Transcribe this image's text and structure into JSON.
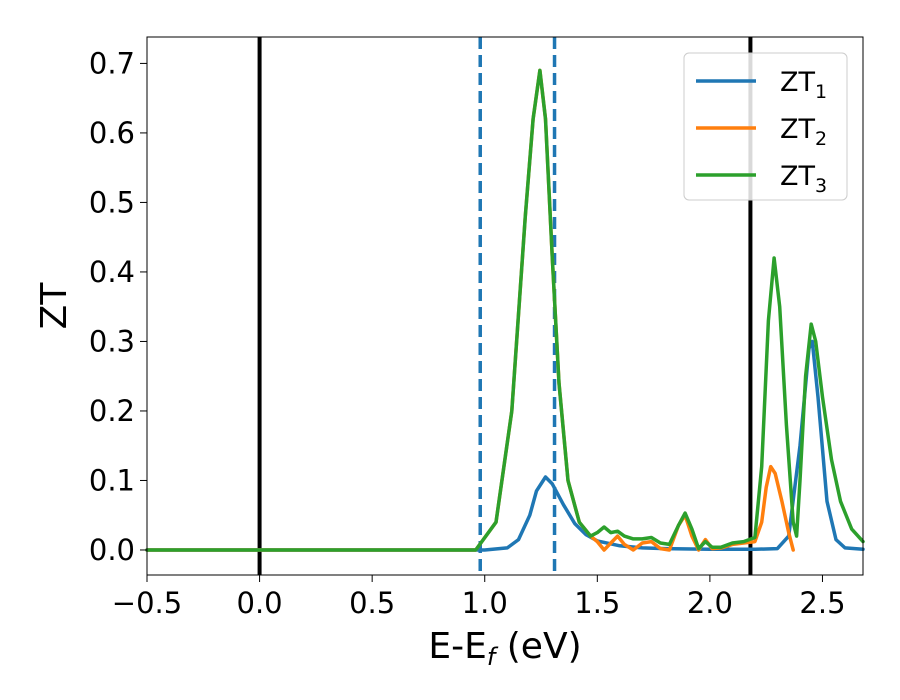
{
  "chart_data": {
    "type": "line",
    "xlabel_main": "E-E",
    "xlabel_sub": "f",
    "xlabel_tail": " (eV)",
    "ylabel": "ZT",
    "xlim": [
      -0.5,
      2.68
    ],
    "ylim": [
      -0.036,
      0.738
    ],
    "x_ticks": [
      -0.5,
      0.0,
      0.5,
      1.0,
      1.5,
      2.0,
      2.5
    ],
    "x_tick_labels": [
      "−0.5",
      "0.0",
      "0.5",
      "1.0",
      "1.5",
      "2.0",
      "2.5"
    ],
    "y_ticks": [
      0.0,
      0.1,
      0.2,
      0.3,
      0.4,
      0.5,
      0.6,
      0.7
    ],
    "y_tick_labels": [
      "0.0",
      "0.1",
      "0.2",
      "0.3",
      "0.4",
      "0.5",
      "0.6",
      "0.7"
    ],
    "grid": false,
    "legend_position": "top-right",
    "vlines": [
      {
        "x": 0.0,
        "style": "solid",
        "color": "#000000"
      },
      {
        "x": 0.98,
        "style": "dashed",
        "color": "#1f77b4"
      },
      {
        "x": 1.31,
        "style": "dashed",
        "color": "#1f77b4"
      },
      {
        "x": 2.18,
        "style": "solid",
        "color": "#000000"
      }
    ],
    "series": [
      {
        "name": "ZT",
        "subscript": "1",
        "color": "#1f77b4",
        "points": [
          [
            -0.5,
            0.0
          ],
          [
            1.0,
            0.0
          ],
          [
            1.1,
            0.003
          ],
          [
            1.15,
            0.015
          ],
          [
            1.2,
            0.05
          ],
          [
            1.23,
            0.085
          ],
          [
            1.27,
            0.105
          ],
          [
            1.3,
            0.095
          ],
          [
            1.35,
            0.065
          ],
          [
            1.4,
            0.038
          ],
          [
            1.45,
            0.022
          ],
          [
            1.5,
            0.013
          ],
          [
            1.6,
            0.006
          ],
          [
            1.7,
            0.003
          ],
          [
            1.8,
            0.002
          ],
          [
            2.0,
            0.001
          ],
          [
            2.2,
            0.001
          ],
          [
            2.3,
            0.002
          ],
          [
            2.35,
            0.02
          ],
          [
            2.4,
            0.15
          ],
          [
            2.44,
            0.29
          ],
          [
            2.455,
            0.3
          ],
          [
            2.48,
            0.22
          ],
          [
            2.52,
            0.07
          ],
          [
            2.56,
            0.015
          ],
          [
            2.6,
            0.003
          ],
          [
            2.68,
            0.001
          ]
        ]
      },
      {
        "name": "ZT",
        "subscript": "2",
        "color": "#ff7f0e",
        "points": [
          [
            -0.5,
            0.0
          ],
          [
            0.96,
            0.0
          ],
          [
            1.05,
            0.04
          ],
          [
            1.12,
            0.2
          ],
          [
            1.18,
            0.48
          ],
          [
            1.215,
            0.62
          ],
          [
            1.245,
            0.69
          ],
          [
            1.27,
            0.62
          ],
          [
            1.3,
            0.42
          ],
          [
            1.33,
            0.24
          ],
          [
            1.37,
            0.1
          ],
          [
            1.42,
            0.04
          ],
          [
            1.47,
            0.02
          ],
          [
            1.5,
            0.012
          ],
          [
            1.53,
            0.0
          ],
          [
            1.56,
            0.01
          ],
          [
            1.59,
            0.02
          ],
          [
            1.62,
            0.008
          ],
          [
            1.66,
            0.0
          ],
          [
            1.7,
            0.01
          ],
          [
            1.74,
            0.012
          ],
          [
            1.78,
            0.002
          ],
          [
            1.82,
            0.0
          ],
          [
            1.86,
            0.035
          ],
          [
            1.89,
            0.05
          ],
          [
            1.92,
            0.02
          ],
          [
            1.95,
            0.0
          ],
          [
            1.98,
            0.015
          ],
          [
            2.01,
            0.002
          ],
          [
            2.05,
            0.003
          ],
          [
            2.1,
            0.008
          ],
          [
            2.15,
            0.01
          ],
          [
            2.2,
            0.012
          ],
          [
            2.23,
            0.04
          ],
          [
            2.25,
            0.09
          ],
          [
            2.27,
            0.12
          ],
          [
            2.29,
            0.11
          ],
          [
            2.32,
            0.07
          ],
          [
            2.35,
            0.025
          ],
          [
            2.37,
            0.0
          ]
        ]
      },
      {
        "name": "ZT",
        "subscript": "3",
        "color": "#2ca02c",
        "points": [
          [
            -0.5,
            0.0
          ],
          [
            0.96,
            0.0
          ],
          [
            1.05,
            0.04
          ],
          [
            1.12,
            0.2
          ],
          [
            1.18,
            0.48
          ],
          [
            1.215,
            0.62
          ],
          [
            1.245,
            0.69
          ],
          [
            1.27,
            0.62
          ],
          [
            1.3,
            0.42
          ],
          [
            1.33,
            0.24
          ],
          [
            1.37,
            0.1
          ],
          [
            1.42,
            0.04
          ],
          [
            1.47,
            0.02
          ],
          [
            1.5,
            0.025
          ],
          [
            1.53,
            0.033
          ],
          [
            1.56,
            0.025
          ],
          [
            1.59,
            0.027
          ],
          [
            1.62,
            0.02
          ],
          [
            1.66,
            0.016
          ],
          [
            1.7,
            0.016
          ],
          [
            1.74,
            0.018
          ],
          [
            1.78,
            0.01
          ],
          [
            1.82,
            0.008
          ],
          [
            1.86,
            0.035
          ],
          [
            1.89,
            0.053
          ],
          [
            1.92,
            0.03
          ],
          [
            1.95,
            0.002
          ],
          [
            1.98,
            0.012
          ],
          [
            2.01,
            0.004
          ],
          [
            2.05,
            0.004
          ],
          [
            2.1,
            0.01
          ],
          [
            2.15,
            0.012
          ],
          [
            2.2,
            0.018
          ],
          [
            2.23,
            0.12
          ],
          [
            2.26,
            0.33
          ],
          [
            2.285,
            0.42
          ],
          [
            2.31,
            0.35
          ],
          [
            2.34,
            0.18
          ],
          [
            2.37,
            0.04
          ],
          [
            2.385,
            0.02
          ],
          [
            2.4,
            0.1
          ],
          [
            2.425,
            0.25
          ],
          [
            2.45,
            0.325
          ],
          [
            2.47,
            0.3
          ],
          [
            2.5,
            0.22
          ],
          [
            2.54,
            0.13
          ],
          [
            2.58,
            0.07
          ],
          [
            2.63,
            0.03
          ],
          [
            2.68,
            0.012
          ]
        ]
      }
    ]
  }
}
